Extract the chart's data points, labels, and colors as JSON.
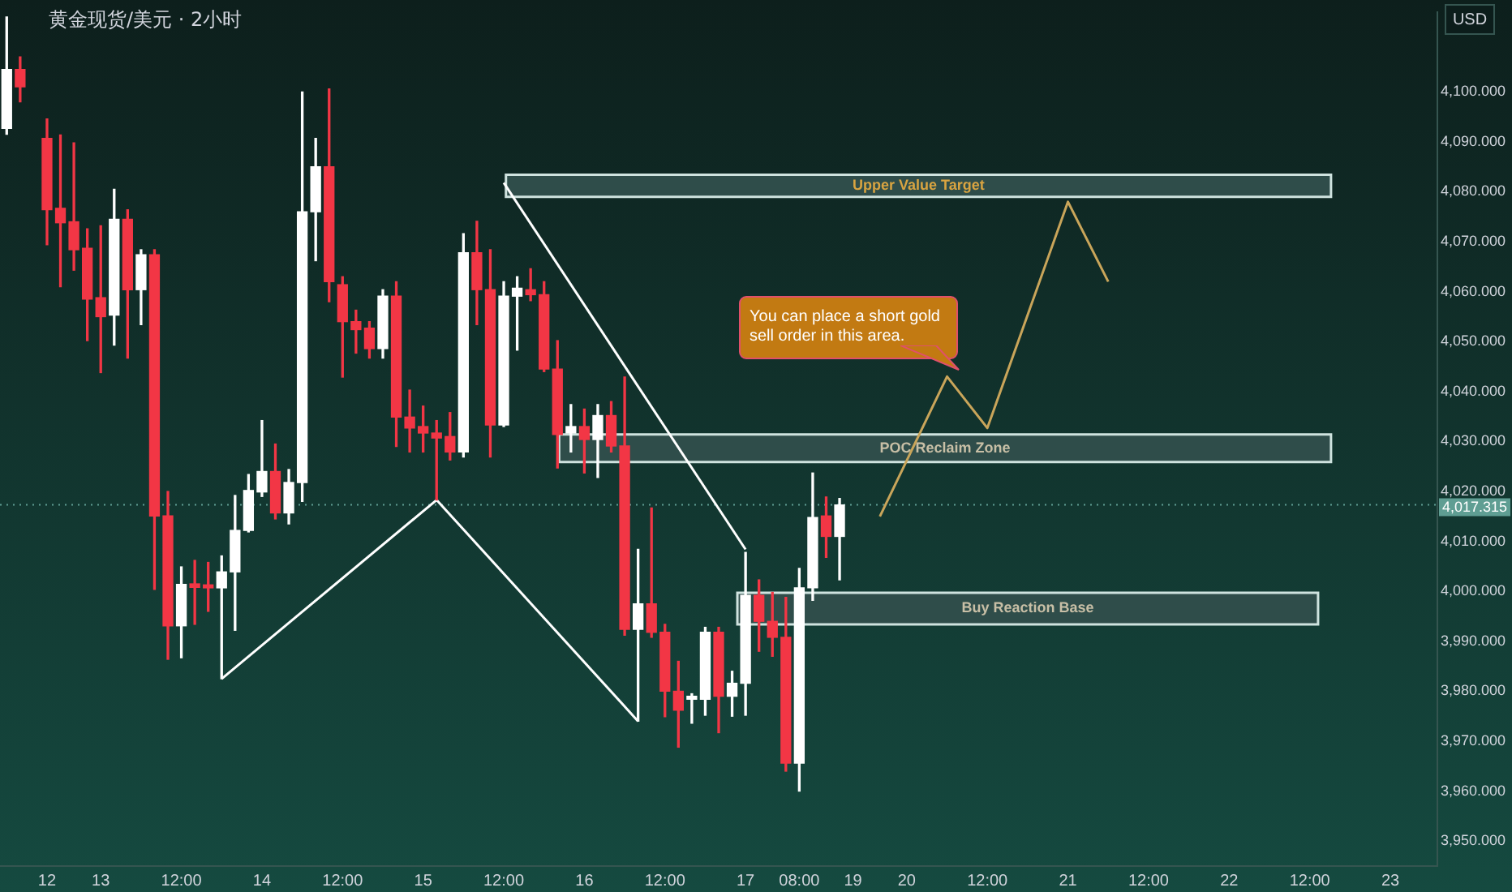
{
  "chart_data": {
    "type": "candlestick",
    "title": "黄金现货/美元 · 2小时",
    "ylabel": "USD",
    "categories": [
      null,
      null,
      null,
      "12",
      null,
      null,
      null,
      "13",
      null,
      null,
      null,
      null,
      null,
      "12:00",
      null,
      null,
      null,
      null,
      null,
      "14",
      null,
      null,
      null,
      null,
      null,
      "12:00",
      null,
      null,
      null,
      null,
      null,
      "15",
      null,
      null,
      null,
      null,
      null,
      "12:00",
      null,
      null,
      null,
      null,
      null,
      "16",
      null,
      null,
      null,
      null,
      null,
      "12:00",
      null,
      null,
      null,
      null,
      null,
      "17",
      null,
      null,
      null,
      "08:00",
      null,
      null,
      null,
      "19",
      null,
      null,
      null,
      "20",
      null,
      null,
      null,
      null,
      null,
      "12:00",
      null,
      null,
      null,
      null,
      null,
      "21",
      null,
      null,
      null,
      null,
      null,
      "12:00",
      null,
      null,
      null,
      null,
      null,
      "22",
      null,
      null,
      null,
      null,
      null,
      "12:00",
      null,
      null,
      null,
      null,
      null,
      "23",
      null,
      null,
      null
    ],
    "ohlc": [
      [
        4092.7,
        4115,
        4091.5,
        4104.5
      ],
      [
        4104.5,
        4107,
        4098,
        4101
      ],
      null,
      [
        4090.7,
        4094.6,
        4069.4,
        4076.4
      ],
      [
        4076.7,
        4091.4,
        4061,
        4073.8
      ],
      [
        4074,
        4089.8,
        4064.3,
        4068.4
      ],
      [
        4068.7,
        4072.6,
        4050.2,
        4058.5
      ],
      [
        4058.8,
        4073.2,
        4043.8,
        4055
      ],
      [
        4055.3,
        4080.5,
        4049.3,
        4074.5
      ],
      [
        4074.5,
        4076.4,
        4046.7,
        4060.4
      ],
      [
        4060.4,
        4068.4,
        4053.4,
        4067.4
      ],
      [
        4067.4,
        4068.4,
        4000.4,
        4015.1
      ],
      [
        4015.1,
        4020,
        3986.4,
        3993.1
      ],
      [
        3993.1,
        4004.9,
        3986.7,
        4001.4
      ],
      [
        4001.5,
        4006.2,
        3993.4,
        4000.8
      ],
      [
        4001.3,
        4005.8,
        3996,
        4000.7
      ],
      [
        4000.7,
        4007.1,
        3982.5,
        4003.9
      ],
      [
        4003.9,
        4019.2,
        3992.2,
        4012.2
      ],
      [
        4012.2,
        4023.4,
        4011.9,
        4020.2
      ],
      [
        4019.9,
        4034.2,
        4019,
        4024
      ],
      [
        4024,
        4029.5,
        4014.5,
        4015.7
      ],
      [
        4015.7,
        4024.4,
        4013.5,
        4021.8
      ],
      [
        4021.8,
        4100,
        4018,
        4076
      ],
      [
        4076,
        4090.7,
        4066.2,
        4085
      ],
      [
        4085,
        4100.6,
        4058,
        4062
      ],
      [
        4061.4,
        4063,
        4042.9,
        4054
      ],
      [
        4054,
        4056.3,
        4047.7,
        4052.4
      ],
      [
        4052.7,
        4054,
        4046.7,
        4048.6
      ],
      [
        4048.6,
        4060.4,
        4046.7,
        4059.1
      ],
      [
        4059.1,
        4062,
        4029,
        4034.9
      ],
      [
        4034.9,
        4040.3,
        4027.9,
        4032.7
      ],
      [
        4033,
        4037.1,
        4027.9,
        4031.7
      ],
      [
        4031.7,
        4034.2,
        4018.3,
        4030.7
      ],
      [
        4031,
        4035.8,
        4026.3,
        4027.9
      ],
      [
        4027.9,
        4071.6,
        4026.9,
        4067.8
      ],
      [
        4067.8,
        4074.1,
        4053.4,
        4060.4
      ],
      [
        4060.4,
        4068.4,
        4026.9,
        4033.3
      ],
      [
        4033.3,
        4062,
        4033,
        4059.1
      ],
      [
        4059.1,
        4063,
        4048.3,
        4060.7
      ],
      [
        4060.4,
        4064.6,
        4058.2,
        4059.4
      ],
      [
        4059.4,
        4062,
        4044,
        4044.5
      ],
      [
        4044.5,
        4050.2,
        4024.7,
        4031.4
      ],
      [
        4031.7,
        4037.4,
        4027.9,
        4033
      ],
      [
        4033,
        4036.5,
        4023.7,
        4030.4
      ],
      [
        4030.4,
        4037.4,
        4022.8,
        4035.2
      ],
      [
        4035.2,
        4038,
        4027.9,
        4029.1
      ],
      [
        4029.1,
        4042.9,
        3991.2,
        3992.4
      ],
      [
        3992.4,
        4008.4,
        3974,
        3997.5
      ],
      [
        3997.5,
        4016.7,
        3990.8,
        3991.8
      ],
      [
        3991.8,
        3993.4,
        3974.9,
        3980
      ],
      [
        3980,
        3986,
        3968.8,
        3976.2
      ],
      [
        3978.4,
        3979.5,
        3973.6,
        3979
      ],
      [
        3978.4,
        3992.8,
        3975.2,
        3991.8
      ],
      [
        3991.8,
        3992.8,
        3971.7,
        3979
      ],
      [
        3979,
        3984,
        3975,
        3981.6
      ],
      [
        3981.6,
        4007.8,
        3975.2,
        3999.2
      ],
      [
        3999.2,
        4002.3,
        3988,
        3994
      ],
      [
        3994,
        3999.8,
        3987,
        3990.8
      ],
      [
        3990.8,
        3998.8,
        3964,
        3965.6
      ],
      [
        3965.6,
        4004.6,
        3960,
        4000.7
      ],
      [
        4000.7,
        4023.7,
        3998.2,
        4014.8
      ],
      [
        4015.1,
        4018.9,
        4006.8,
        4011
      ],
      [
        4011,
        4018.6,
        4002.3,
        4017.3
      ],
      null,
      null,
      null,
      null,
      null,
      null,
      null,
      null,
      null,
      null,
      null,
      null,
      null,
      null,
      null,
      null,
      null,
      null,
      null,
      null,
      null,
      null,
      null,
      null,
      null,
      null,
      null,
      null,
      null,
      null,
      null,
      null,
      null,
      null,
      null,
      null,
      null,
      null,
      null,
      null,
      null,
      null,
      null,
      null
    ],
    "series": [
      {
        "type": "line",
        "color": "#ffffff",
        "values": [
          null,
          null,
          null,
          null,
          null,
          null,
          null,
          null,
          null,
          null,
          null,
          null,
          null,
          null,
          null,
          null,
          3982.5,
          null,
          null,
          null,
          null,
          null,
          null,
          null,
          null,
          null,
          null,
          null,
          null,
          null,
          null,
          null,
          4018.3,
          null,
          null,
          null,
          null,
          null,
          null,
          null,
          null,
          null,
          null,
          null,
          null,
          null,
          null,
          3974,
          null,
          null,
          null,
          null,
          null,
          null,
          null,
          null,
          null,
          null,
          null,
          null,
          null,
          null,
          null,
          null,
          null,
          null,
          null,
          null,
          null,
          null,
          null,
          null,
          null,
          null,
          null,
          null,
          null,
          null,
          null,
          null,
          null,
          null,
          null,
          null,
          null,
          null,
          null,
          null,
          null,
          null,
          null,
          null,
          null,
          null,
          null,
          null,
          null,
          null,
          null,
          null,
          null,
          null,
          null,
          null,
          null,
          null,
          null
        ]
      },
      {
        "type": "line",
        "color": "#ffffff",
        "values": [
          null,
          null,
          null,
          null,
          null,
          null,
          null,
          null,
          null,
          null,
          null,
          null,
          null,
          null,
          null,
          null,
          null,
          null,
          null,
          null,
          null,
          null,
          null,
          null,
          null,
          null,
          null,
          null,
          null,
          null,
          null,
          null,
          null,
          null,
          null,
          null,
          null,
          4081.8,
          null,
          null,
          null,
          null,
          null,
          null,
          null,
          null,
          null,
          null,
          null,
          null,
          null,
          null,
          null,
          null,
          null,
          4008.4,
          null,
          null,
          null,
          null,
          null,
          null,
          null,
          null,
          null,
          null,
          null,
          null,
          null,
          null,
          null,
          null,
          null,
          null,
          null,
          null,
          null,
          null,
          null,
          null,
          null,
          null,
          null,
          null,
          null,
          null,
          null,
          null,
          null,
          null,
          null,
          null,
          null,
          null,
          null,
          null,
          null,
          null,
          null,
          null,
          null,
          null,
          null,
          null,
          null,
          null,
          null
        ]
      },
      {
        "type": "line",
        "color": "#c9a55a",
        "values": [
          null,
          null,
          null,
          null,
          null,
          null,
          null,
          null,
          null,
          null,
          null,
          null,
          null,
          null,
          null,
          null,
          null,
          null,
          null,
          null,
          null,
          null,
          null,
          null,
          null,
          null,
          null,
          null,
          null,
          null,
          null,
          null,
          null,
          null,
          null,
          null,
          null,
          null,
          null,
          null,
          null,
          null,
          null,
          null,
          null,
          null,
          null,
          null,
          null,
          null,
          null,
          null,
          null,
          null,
          null,
          null,
          null,
          null,
          null,
          null,
          null,
          null,
          null,
          null,
          null,
          4015,
          null,
          null,
          null,
          null,
          4043,
          null,
          null,
          4032.7,
          null,
          null,
          null,
          null,
          null,
          4078,
          null,
          null,
          4062,
          null,
          null,
          null,
          null,
          null,
          null,
          null,
          null,
          null,
          null,
          null,
          null,
          null,
          null,
          null,
          null,
          null,
          null,
          null,
          null,
          null,
          null,
          null,
          null
        ]
      }
    ],
    "bands": [
      {
        "axis": "y",
        "from": 4079,
        "to": 4083.4,
        "label": "Upper Value Target",
        "color": "#2f4d4a"
      },
      {
        "axis": "y",
        "from": 3993.4,
        "to": 3999.7,
        "label": "Buy Reaction Base",
        "color": "#2f4d4a"
      },
      {
        "axis": "y",
        "from": 4025.9,
        "to": 4031.4,
        "label": "POC Reclaim Zone",
        "color": "#2f4d4a"
      }
    ],
    "ref_lines": [
      {
        "axis": "y",
        "value": 4017.315,
        "label": "4,017.315",
        "color": "#5f9e93",
        "line_style": "dotted"
      }
    ],
    "annotations": [
      "You can place a short gold sell order in this area."
    ],
    "ylim": [
      3945,
      4116
    ],
    "yticks": [
      {
        "value": 3950,
        "label": "3,950.000"
      },
      {
        "value": 3960,
        "label": "3,960.000"
      },
      {
        "value": 3970,
        "label": "3,970.000"
      },
      {
        "value": 3980,
        "label": "3,980.000"
      },
      {
        "value": 3990,
        "label": "3,990.000"
      },
      {
        "value": 4000,
        "label": "4,000.000"
      },
      {
        "value": 4010,
        "label": "4,010.000"
      },
      {
        "value": 4020,
        "label": "4,020.000"
      },
      {
        "value": 4030,
        "label": "4,030.000"
      },
      {
        "value": 4040,
        "label": "4,040.000"
      },
      {
        "value": 4050,
        "label": "4,050.000"
      },
      {
        "value": 4060,
        "label": "4,060.000"
      },
      {
        "value": 4070,
        "label": "4,070.000"
      },
      {
        "value": 4080,
        "label": "4,080.000"
      },
      {
        "value": 4090,
        "label": "4,090.000"
      },
      {
        "value": 4100,
        "label": "4,100.000"
      }
    ],
    "grid": false
  }
}
